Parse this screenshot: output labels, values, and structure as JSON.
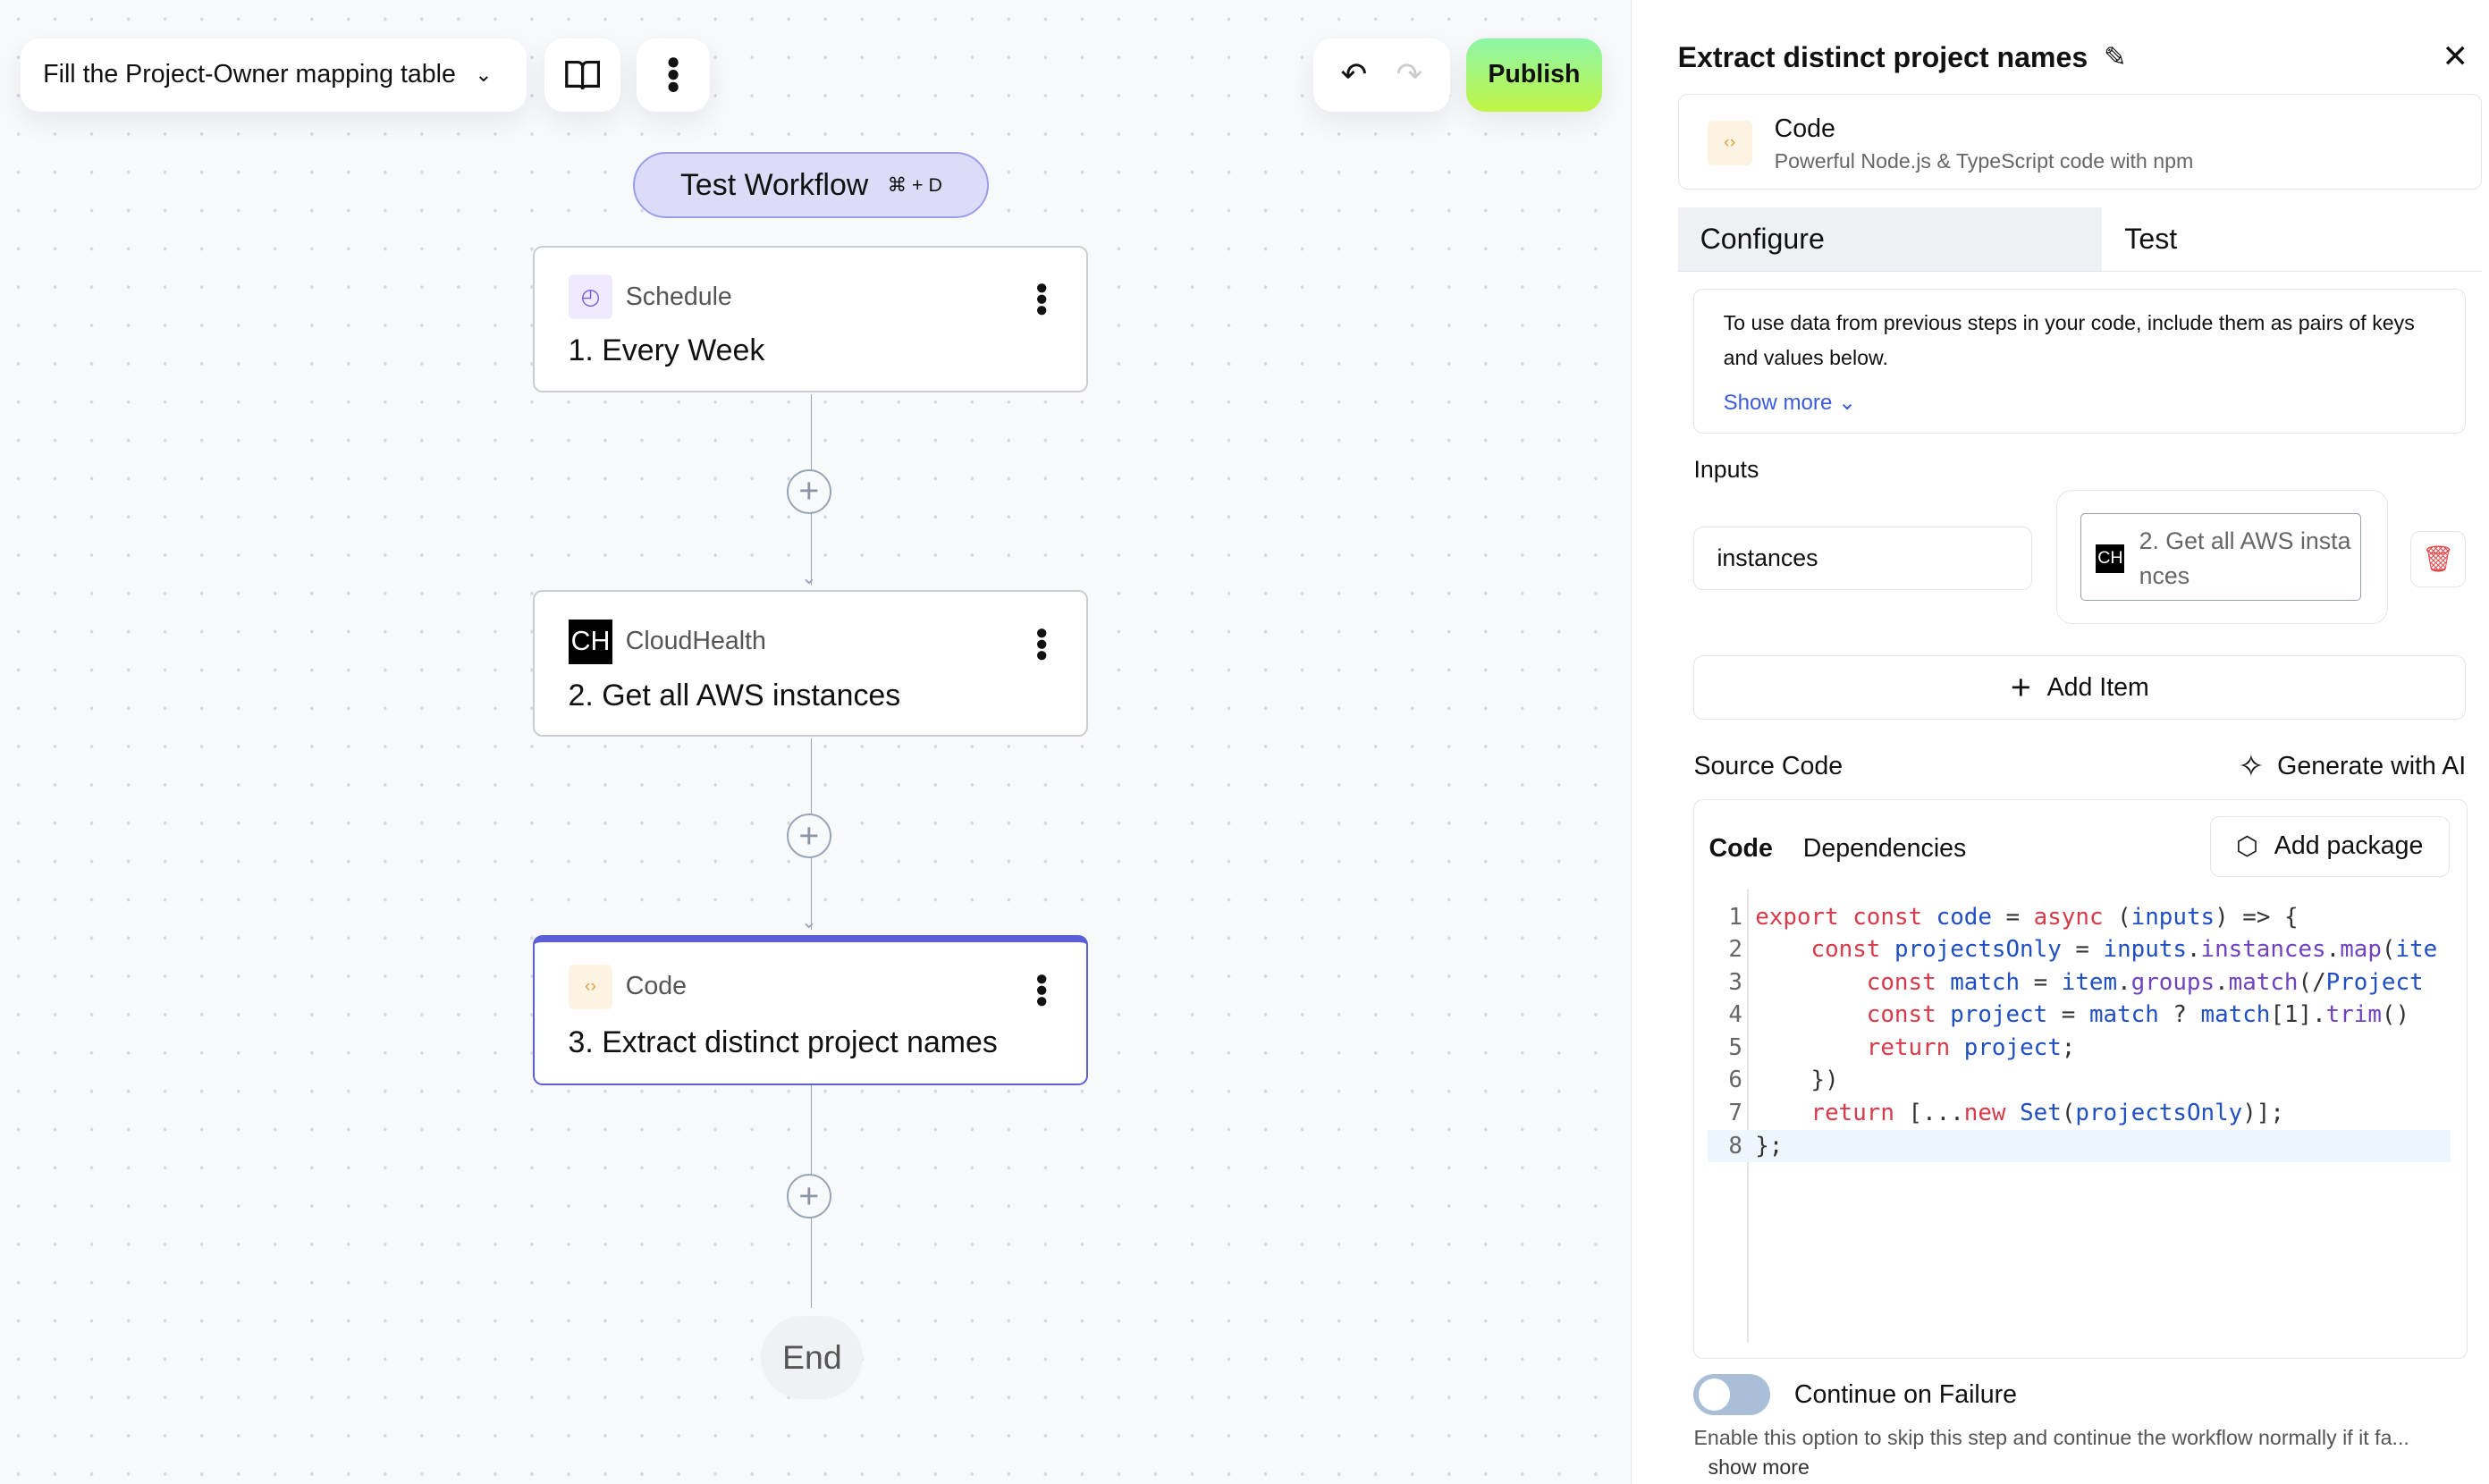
{
  "toolbar": {
    "workflow_name": "Fill the Project-Owner mapping table",
    "publish": "Publish",
    "test_workflow": "Test Workflow",
    "test_shortcut": "⌘ + D"
  },
  "nodes": [
    {
      "app": "Schedule",
      "title": "1. Every Week",
      "icon": "clock-icon"
    },
    {
      "app": "CloudHealth",
      "title": "2. Get all AWS instances",
      "icon": "CH"
    },
    {
      "app": "Code",
      "title": "3. Extract distinct project names",
      "icon": "code-icon"
    }
  ],
  "end_label": "End",
  "panel": {
    "title": "Extract distinct project names",
    "step_app": "Code",
    "step_desc": "Powerful Node.js & TypeScript code with npm",
    "tabs": [
      "Configure",
      "Test"
    ],
    "info": "To use data from previous steps in your code, include them as pairs of keys and values below.",
    "show_more": "Show more",
    "inputs_label": "Inputs",
    "input_key": "instances",
    "input_value": "2. Get all AWS instances",
    "input_value_icon": "CH",
    "add_item": "Add Item",
    "source_code_label": "Source Code",
    "generate_ai": "Generate with AI",
    "code_tabs": [
      "Code",
      "Dependencies"
    ],
    "add_package": "Add package",
    "code_lines": [
      "export const code = async (inputs) => {",
      "    const projectsOnly = inputs.instances.map(ite",
      "        const match = item.groups.match(/Project",
      "        const project = match ? match[1].trim()",
      "        return project;",
      "    })",
      "    return [...new Set(projectsOnly)];",
      "};"
    ],
    "continue_label": "Continue on Failure",
    "continue_enabled": false,
    "continue_desc": "Enable this option to skip this step and continue the workflow normally if it fa...",
    "continue_show_more": "show more"
  },
  "colors": {
    "accent": "#5b5fd6",
    "publish_gradient": [
      "#8ef5a8",
      "#c0f545"
    ],
    "delete": "#e5484d"
  }
}
